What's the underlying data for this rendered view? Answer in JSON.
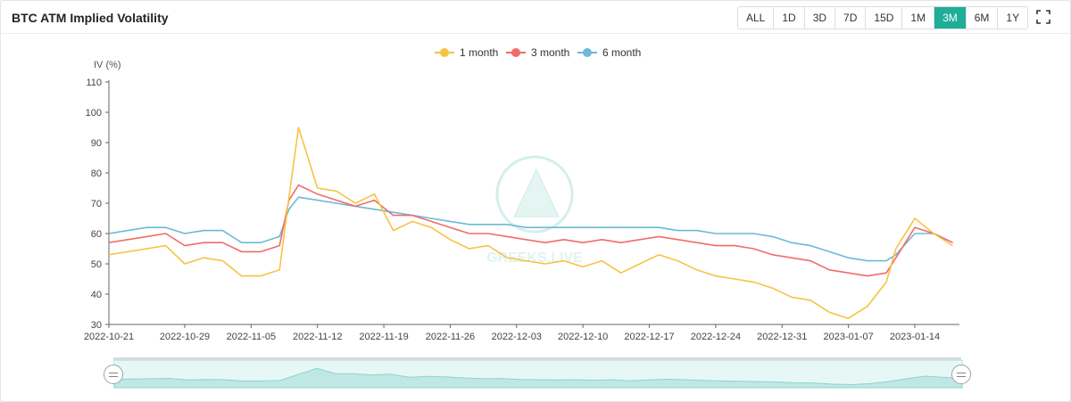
{
  "header": {
    "title": "BTC ATM Implied Volatility",
    "ranges": [
      "ALL",
      "1D",
      "3D",
      "7D",
      "15D",
      "1M",
      "3M",
      "6M",
      "1Y"
    ],
    "active_range": "3M"
  },
  "watermark": "GREEKS.LIVE",
  "colors": {
    "accent": "#1eae98",
    "one_month": "#f6c343",
    "three_month": "#f26b6b",
    "six_month": "#6bbad9"
  },
  "chart_data": {
    "type": "line",
    "title": "BTC ATM Implied Volatility",
    "ylabel": "IV (%)",
    "xlabel": "",
    "ylim": [
      30,
      110
    ],
    "yticks": [
      30,
      40,
      50,
      60,
      70,
      80,
      90,
      100,
      110
    ],
    "xticks": [
      "2022-10-21",
      "2022-10-29",
      "2022-11-05",
      "2022-11-12",
      "2022-11-19",
      "2022-11-26",
      "2022-12-03",
      "2022-12-10",
      "2022-12-17",
      "2022-12-24",
      "2022-12-31",
      "2023-01-07",
      "2023-01-14"
    ],
    "x": [
      "2022-10-21",
      "2022-10-23",
      "2022-10-25",
      "2022-10-27",
      "2022-10-29",
      "2022-10-31",
      "2022-11-02",
      "2022-11-04",
      "2022-11-06",
      "2022-11-08",
      "2022-11-09",
      "2022-11-10",
      "2022-11-12",
      "2022-11-14",
      "2022-11-16",
      "2022-11-18",
      "2022-11-20",
      "2022-11-22",
      "2022-11-24",
      "2022-11-26",
      "2022-11-28",
      "2022-11-30",
      "2022-12-02",
      "2022-12-04",
      "2022-12-06",
      "2022-12-08",
      "2022-12-10",
      "2022-12-12",
      "2022-12-14",
      "2022-12-16",
      "2022-12-18",
      "2022-12-20",
      "2022-12-22",
      "2022-12-24",
      "2022-12-26",
      "2022-12-28",
      "2022-12-30",
      "2023-01-01",
      "2023-01-03",
      "2023-01-05",
      "2023-01-07",
      "2023-01-09",
      "2023-01-11",
      "2023-01-12",
      "2023-01-14",
      "2023-01-16",
      "2023-01-18"
    ],
    "legend_position": "top-center",
    "series": [
      {
        "name": "1 month",
        "values": [
          53,
          54,
          55,
          56,
          50,
          52,
          51,
          46,
          46,
          48,
          72,
          95,
          75,
          74,
          70,
          73,
          61,
          64,
          62,
          58,
          55,
          56,
          52,
          51,
          50,
          51,
          49,
          51,
          47,
          50,
          53,
          51,
          48,
          46,
          45,
          44,
          42,
          39,
          38,
          34,
          32,
          36,
          44,
          55,
          65,
          60,
          56
        ]
      },
      {
        "name": "3 month",
        "values": [
          57,
          58,
          59,
          60,
          56,
          57,
          57,
          54,
          54,
          56,
          71,
          76,
          73,
          71,
          69,
          71,
          66,
          66,
          64,
          62,
          60,
          60,
          59,
          58,
          57,
          58,
          57,
          58,
          57,
          58,
          59,
          58,
          57,
          56,
          56,
          55,
          53,
          52,
          51,
          48,
          47,
          46,
          47,
          52,
          62,
          60,
          57
        ]
      },
      {
        "name": "6 month",
        "values": [
          60,
          61,
          62,
          62,
          60,
          61,
          61,
          57,
          57,
          59,
          68,
          72,
          71,
          70,
          69,
          68,
          67,
          66,
          65,
          64,
          63,
          63,
          63,
          62,
          62,
          62,
          62,
          62,
          62,
          62,
          62,
          61,
          61,
          60,
          60,
          60,
          59,
          57,
          56,
          54,
          52,
          51,
          51,
          53,
          60,
          60,
          57
        ]
      }
    ]
  }
}
